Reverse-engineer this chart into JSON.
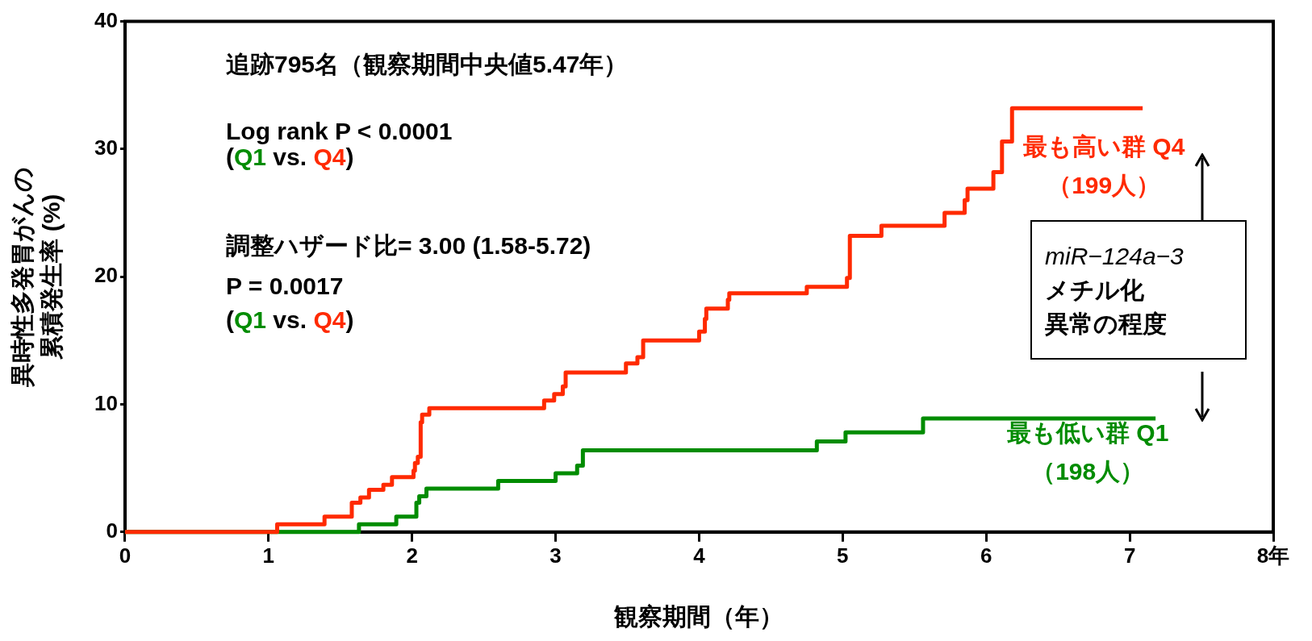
{
  "chart_data": {
    "type": "step",
    "xlabel": "観察期間（年）",
    "ylabel": "異時性多発胃がんの累積発生率 (%)",
    "xlim": [
      0,
      8
    ],
    "xticks": [
      0,
      1,
      2,
      3,
      4,
      5,
      6,
      7,
      {
        "value": 8,
        "label": "8年"
      }
    ],
    "ylim": [
      0,
      40
    ],
    "yticks": [
      0,
      10,
      20,
      30,
      40
    ],
    "grid": false,
    "series": [
      {
        "name": "最も高い群 Q4\n（199人）",
        "color": "#ff2a00",
        "x": [
          0,
          1.06,
          1.39,
          1.58,
          1.64,
          1.7,
          1.8,
          1.86,
          2.01,
          2.02,
          2.04,
          2.06,
          2.07,
          2.12,
          2.92,
          2.99,
          3.05,
          3.07,
          3.49,
          3.57,
          3.61,
          4.0,
          4.04,
          4.05,
          4.2,
          4.21,
          4.75,
          5.03,
          5.05,
          5.27,
          5.71,
          5.85,
          5.87,
          6.05,
          6.11,
          6.18,
          7.09
        ],
        "values": [
          0,
          0.6,
          1.2,
          2.3,
          2.7,
          3.3,
          3.7,
          4.3,
          4.8,
          5.4,
          5.9,
          8.6,
          9.2,
          9.7,
          10.3,
          10.8,
          11.4,
          12.5,
          13.2,
          13.7,
          15.0,
          15.7,
          16.7,
          17.5,
          18.2,
          18.7,
          19.2,
          19.9,
          23.2,
          24.0,
          25.0,
          26.0,
          26.9,
          28.2,
          30.6,
          33.2,
          33.2
        ]
      },
      {
        "name": "最も低い群 Q1\n（198人）",
        "color": "#008c00",
        "x": [
          0,
          1.63,
          1.89,
          2.03,
          2.05,
          2.1,
          2.6,
          3.0,
          3.15,
          3.19,
          4.82,
          5.02,
          5.56,
          7.18
        ],
        "values": [
          0,
          0.6,
          1.2,
          2.3,
          2.8,
          3.4,
          4.0,
          4.6,
          5.2,
          6.4,
          7.1,
          7.8,
          8.9,
          8.9
        ]
      }
    ],
    "annotations": [
      "追跡795名（観察期間中央値5.47年）",
      "Log rank P < 0.0001",
      "(Q1 vs. Q4)",
      "調整ハザード比= 3.00 (1.58-5.72)",
      "P = 0.0017",
      "(Q1 vs. Q4)",
      "miR−124a−3",
      "メチル化",
      "異常の程度"
    ]
  }
}
